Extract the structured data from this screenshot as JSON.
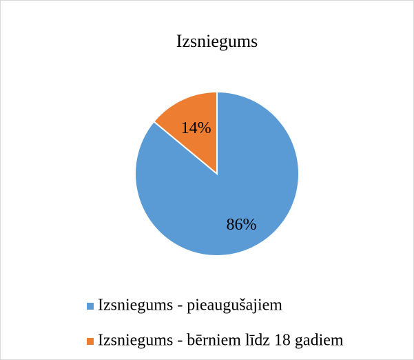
{
  "chart_data": {
    "type": "pie",
    "title": "Izsniegums",
    "categories": [
      "Izsniegums - pieaugušajiem",
      "Izsniegums - bērniem līdz 18 gadiem"
    ],
    "values": [
      86,
      14
    ],
    "value_labels": [
      "86%",
      "14%"
    ],
    "colors": [
      "#5b9bd5",
      "#ed7d31"
    ],
    "legend": "bottom"
  }
}
